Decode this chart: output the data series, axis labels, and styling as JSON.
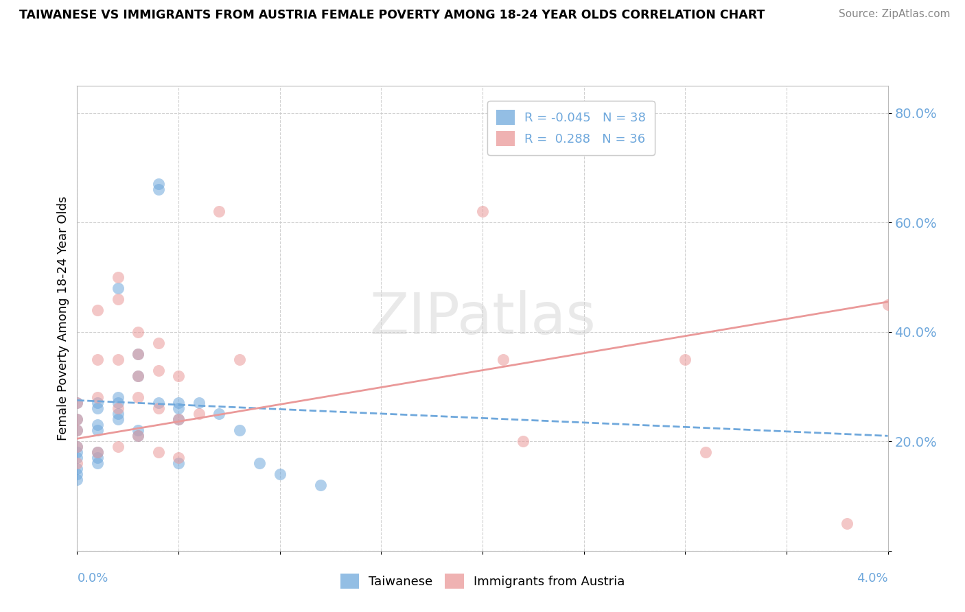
{
  "title": "TAIWANESE VS IMMIGRANTS FROM AUSTRIA FEMALE POVERTY AMONG 18-24 YEAR OLDS CORRELATION CHART",
  "source": "Source: ZipAtlas.com",
  "ylabel": "Female Poverty Among 18-24 Year Olds",
  "xlim": [
    0.0,
    0.04
  ],
  "ylim": [
    0.0,
    0.85
  ],
  "yticks": [
    0.0,
    0.2,
    0.4,
    0.6,
    0.8
  ],
  "ytick_labels": [
    "",
    "20.0%",
    "40.0%",
    "60.0%",
    "80.0%"
  ],
  "legend_line1": "R = -0.045   N = 38",
  "legend_line2": "R =  0.288   N = 36",
  "group1_label": "Taiwanese",
  "group2_label": "Immigrants from Austria",
  "blue_color": "#6fa8dc",
  "pink_color": "#ea9999",
  "blue_legend_color": "#4a86c8",
  "background_color": "#ffffff",
  "watermark_text": "ZIPatlas",
  "taiwanese_x": [
    0.0,
    0.0,
    0.0,
    0.0,
    0.0,
    0.0,
    0.0,
    0.0,
    0.0,
    0.001,
    0.001,
    0.001,
    0.001,
    0.001,
    0.001,
    0.001,
    0.002,
    0.002,
    0.002,
    0.002,
    0.002,
    0.003,
    0.003,
    0.003,
    0.003,
    0.004,
    0.004,
    0.004,
    0.005,
    0.005,
    0.005,
    0.005,
    0.006,
    0.007,
    0.008,
    0.009,
    0.01,
    0.012
  ],
  "taiwanese_y": [
    0.27,
    0.24,
    0.22,
    0.19,
    0.18,
    0.17,
    0.15,
    0.14,
    0.13,
    0.27,
    0.26,
    0.23,
    0.22,
    0.18,
    0.17,
    0.16,
    0.48,
    0.28,
    0.27,
    0.25,
    0.24,
    0.36,
    0.32,
    0.22,
    0.21,
    0.67,
    0.66,
    0.27,
    0.27,
    0.26,
    0.24,
    0.16,
    0.27,
    0.25,
    0.22,
    0.16,
    0.14,
    0.12
  ],
  "austria_x": [
    0.0,
    0.0,
    0.0,
    0.0,
    0.0,
    0.001,
    0.001,
    0.001,
    0.001,
    0.002,
    0.002,
    0.002,
    0.002,
    0.002,
    0.003,
    0.003,
    0.003,
    0.003,
    0.003,
    0.004,
    0.004,
    0.004,
    0.004,
    0.005,
    0.005,
    0.005,
    0.006,
    0.007,
    0.008,
    0.02,
    0.021,
    0.022,
    0.03,
    0.031,
    0.038,
    0.04
  ],
  "austria_y": [
    0.27,
    0.24,
    0.22,
    0.19,
    0.16,
    0.44,
    0.35,
    0.28,
    0.18,
    0.5,
    0.46,
    0.35,
    0.26,
    0.19,
    0.4,
    0.36,
    0.32,
    0.28,
    0.21,
    0.38,
    0.33,
    0.26,
    0.18,
    0.32,
    0.24,
    0.17,
    0.25,
    0.62,
    0.35,
    0.62,
    0.35,
    0.2,
    0.35,
    0.18,
    0.05,
    0.45
  ],
  "blue_trend_x": [
    0.0,
    0.04
  ],
  "blue_trend_y": [
    0.275,
    0.21
  ],
  "pink_trend_x": [
    0.0,
    0.04
  ],
  "pink_trend_y": [
    0.205,
    0.455
  ]
}
